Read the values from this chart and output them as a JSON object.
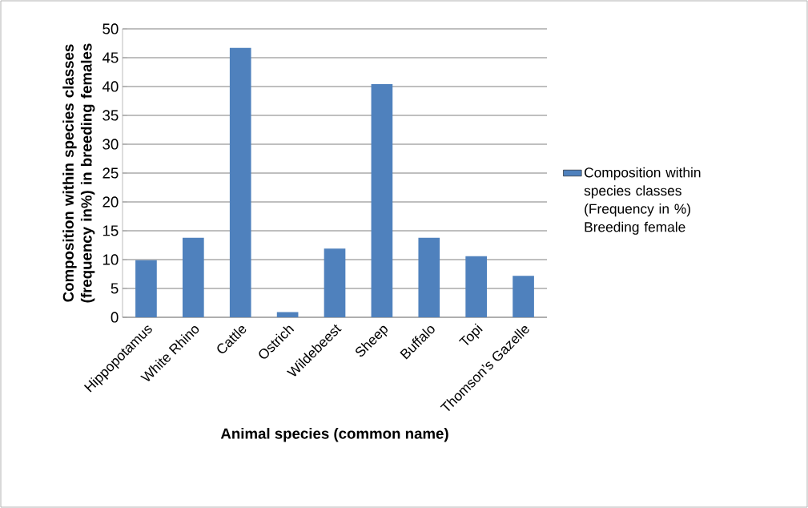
{
  "chart_data": {
    "type": "bar",
    "xlabel": "Animal species (common name)",
    "ylabel": "Composition within species classes (frequency in%) in breeding females",
    "categories": [
      "Hippopotamus",
      "White Rhino",
      "Cattle",
      "Ostrich",
      "Wildebeest",
      "Sheep",
      "Buffalo",
      "Topi",
      "Thomson’s Gazelle"
    ],
    "series": [
      {
        "name": "Composition within species classes (Frequency in %) Breeding female",
        "color": "#4f81bd",
        "values": [
          9.9,
          13.8,
          46.7,
          0.9,
          11.9,
          40.4,
          13.8,
          10.6,
          7.2
        ]
      }
    ],
    "ylim": [
      0,
      50
    ],
    "yticks": [
      0,
      5,
      10,
      15,
      20,
      25,
      30,
      35,
      40,
      45,
      50
    ],
    "grid": "y",
    "legend": "right"
  }
}
